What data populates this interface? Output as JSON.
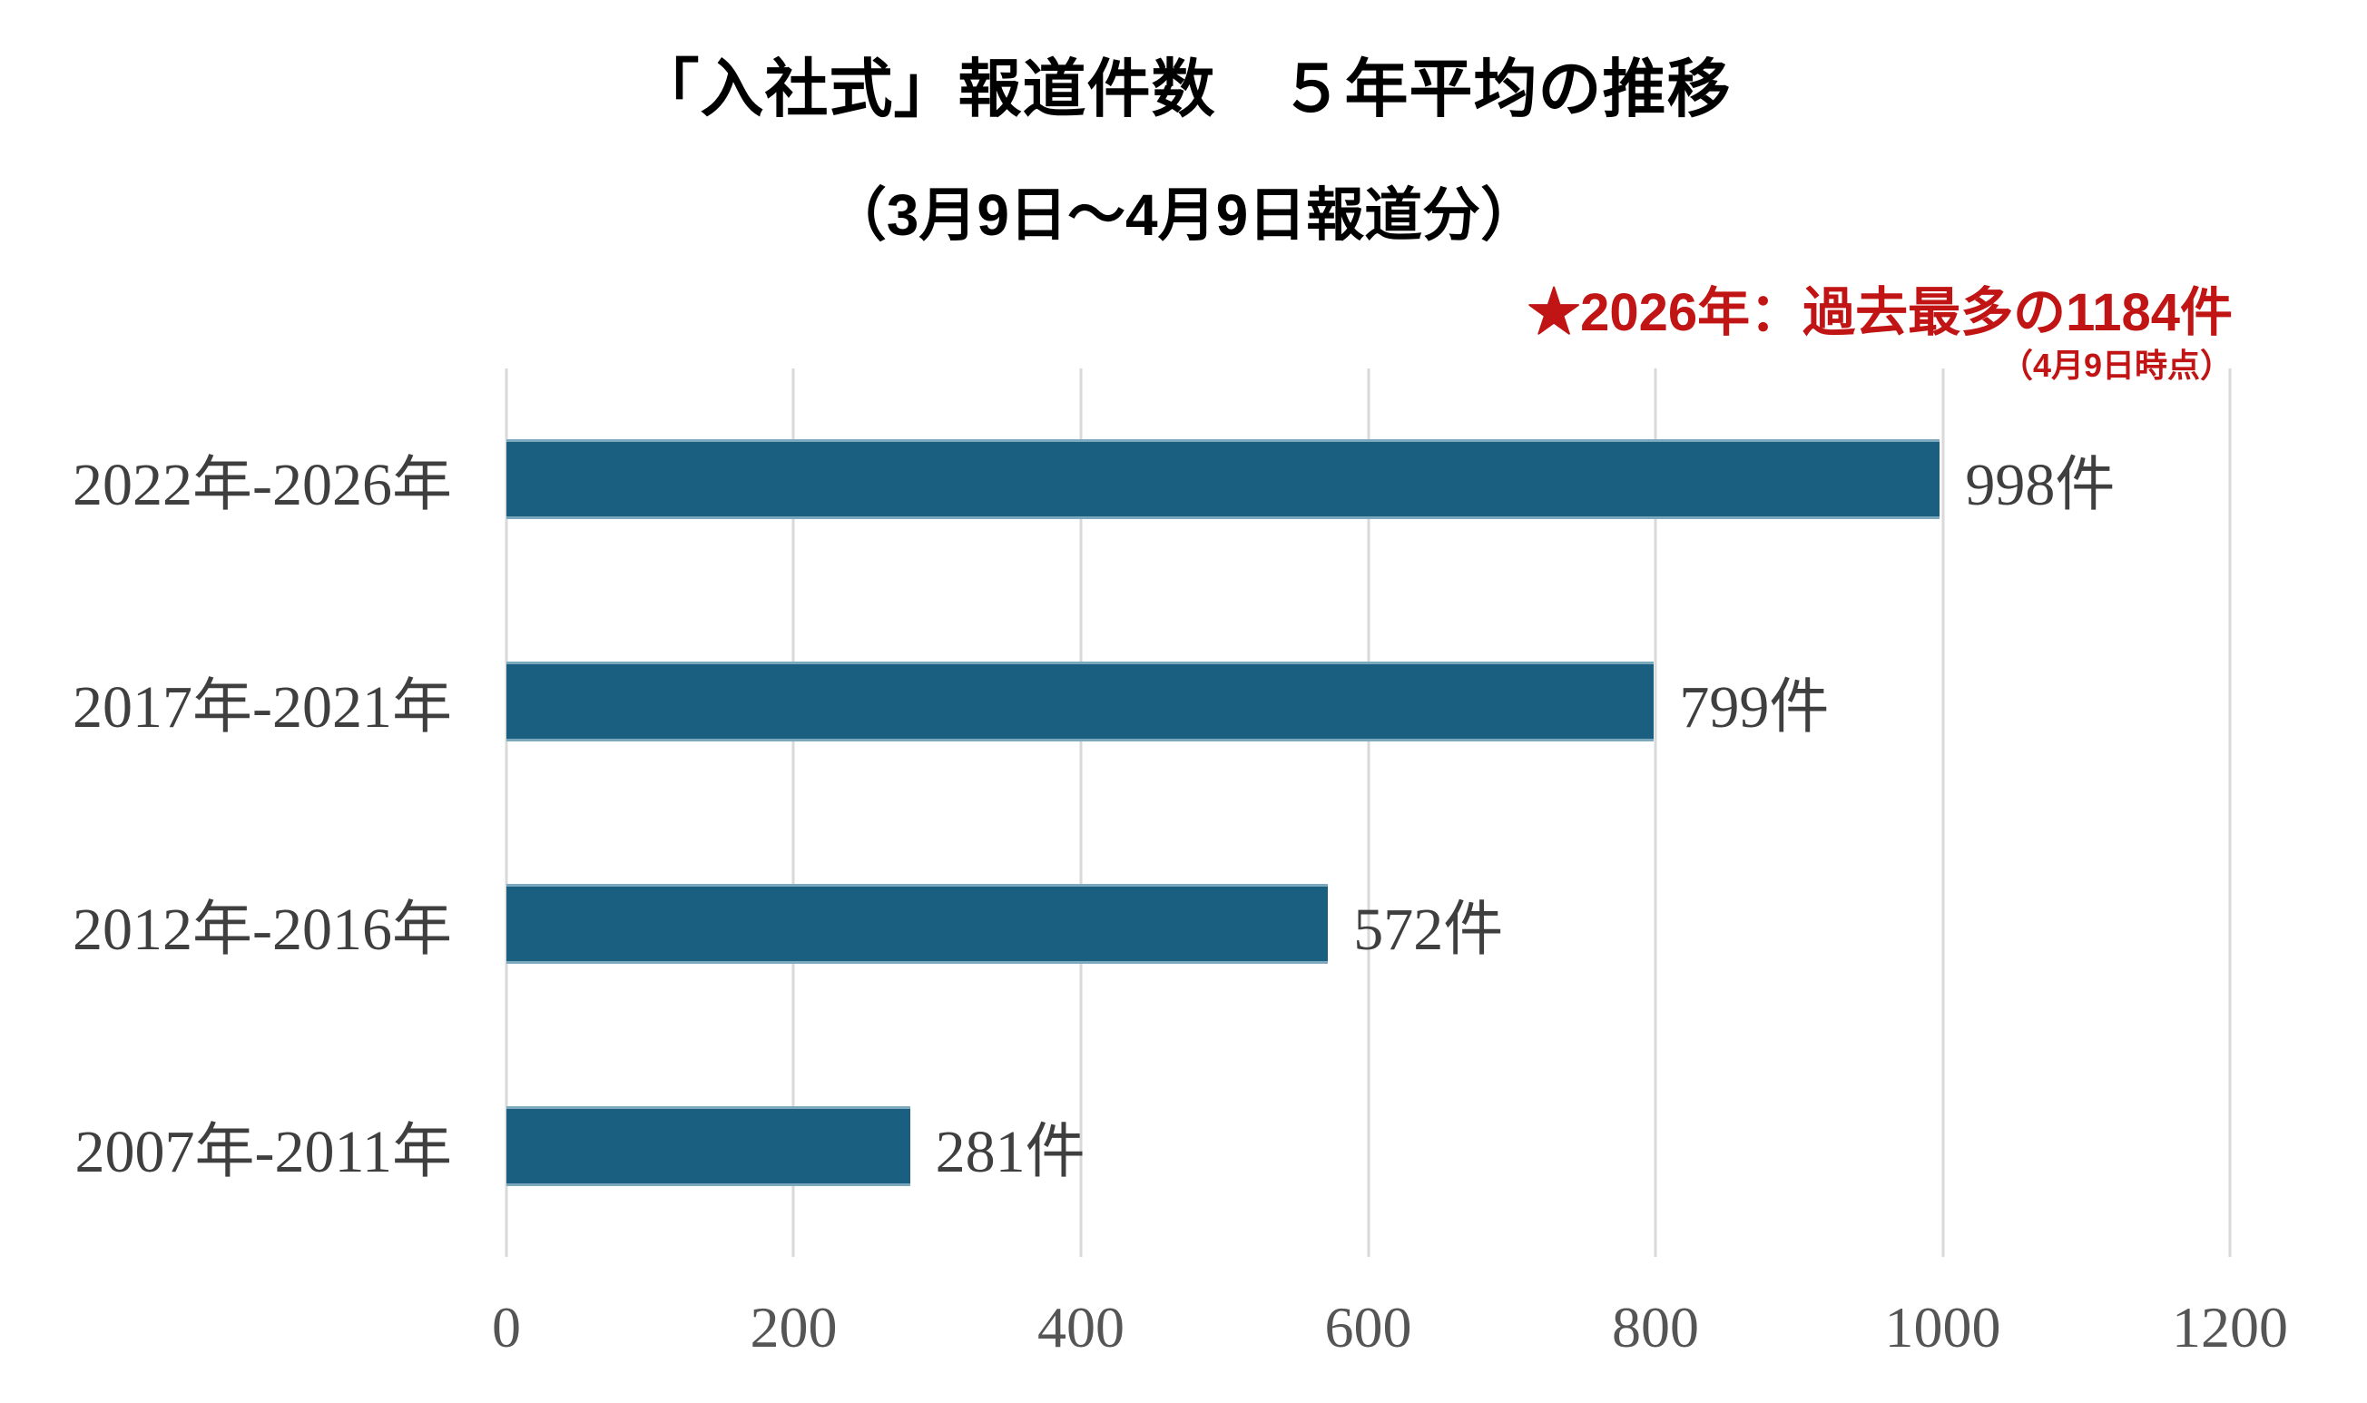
{
  "header": {
    "title": "「入社式」報道件数　５年平均の推移",
    "subtitle": "（3月9日～4月9日報道分）"
  },
  "annotation": {
    "main": "★2026年：過去最多の1184件",
    "sub": "（4月9日時点）",
    "color": "#C11414"
  },
  "chart_data": {
    "type": "bar",
    "orientation": "horizontal",
    "title": "「入社式」報道件数　５年平均の推移",
    "subtitle": "（3月9日～4月9日報道分）",
    "categories": [
      "2022年-2026年",
      "2017年-2021年",
      "2012年-2016年",
      "2007年-2011年"
    ],
    "values": [
      998,
      799,
      572,
      281
    ],
    "value_labels": [
      "998件",
      "799件",
      "572件",
      "281件"
    ],
    "xlim": [
      0,
      1200
    ],
    "x_ticks": [
      "0",
      "200",
      "400",
      "600",
      "800",
      "1000",
      "1200"
    ],
    "x_tick_values": [
      0,
      200,
      400,
      600,
      800,
      1000,
      1200
    ],
    "grid": true,
    "legend": "none",
    "bar_color": "#1A5F80",
    "gridline_color": "#D9D9D9",
    "label_color": "#3F3F3F",
    "tick_color": "#555555",
    "annotation_text": "★2026年：過去最多の1184件（4月9日時点）"
  }
}
